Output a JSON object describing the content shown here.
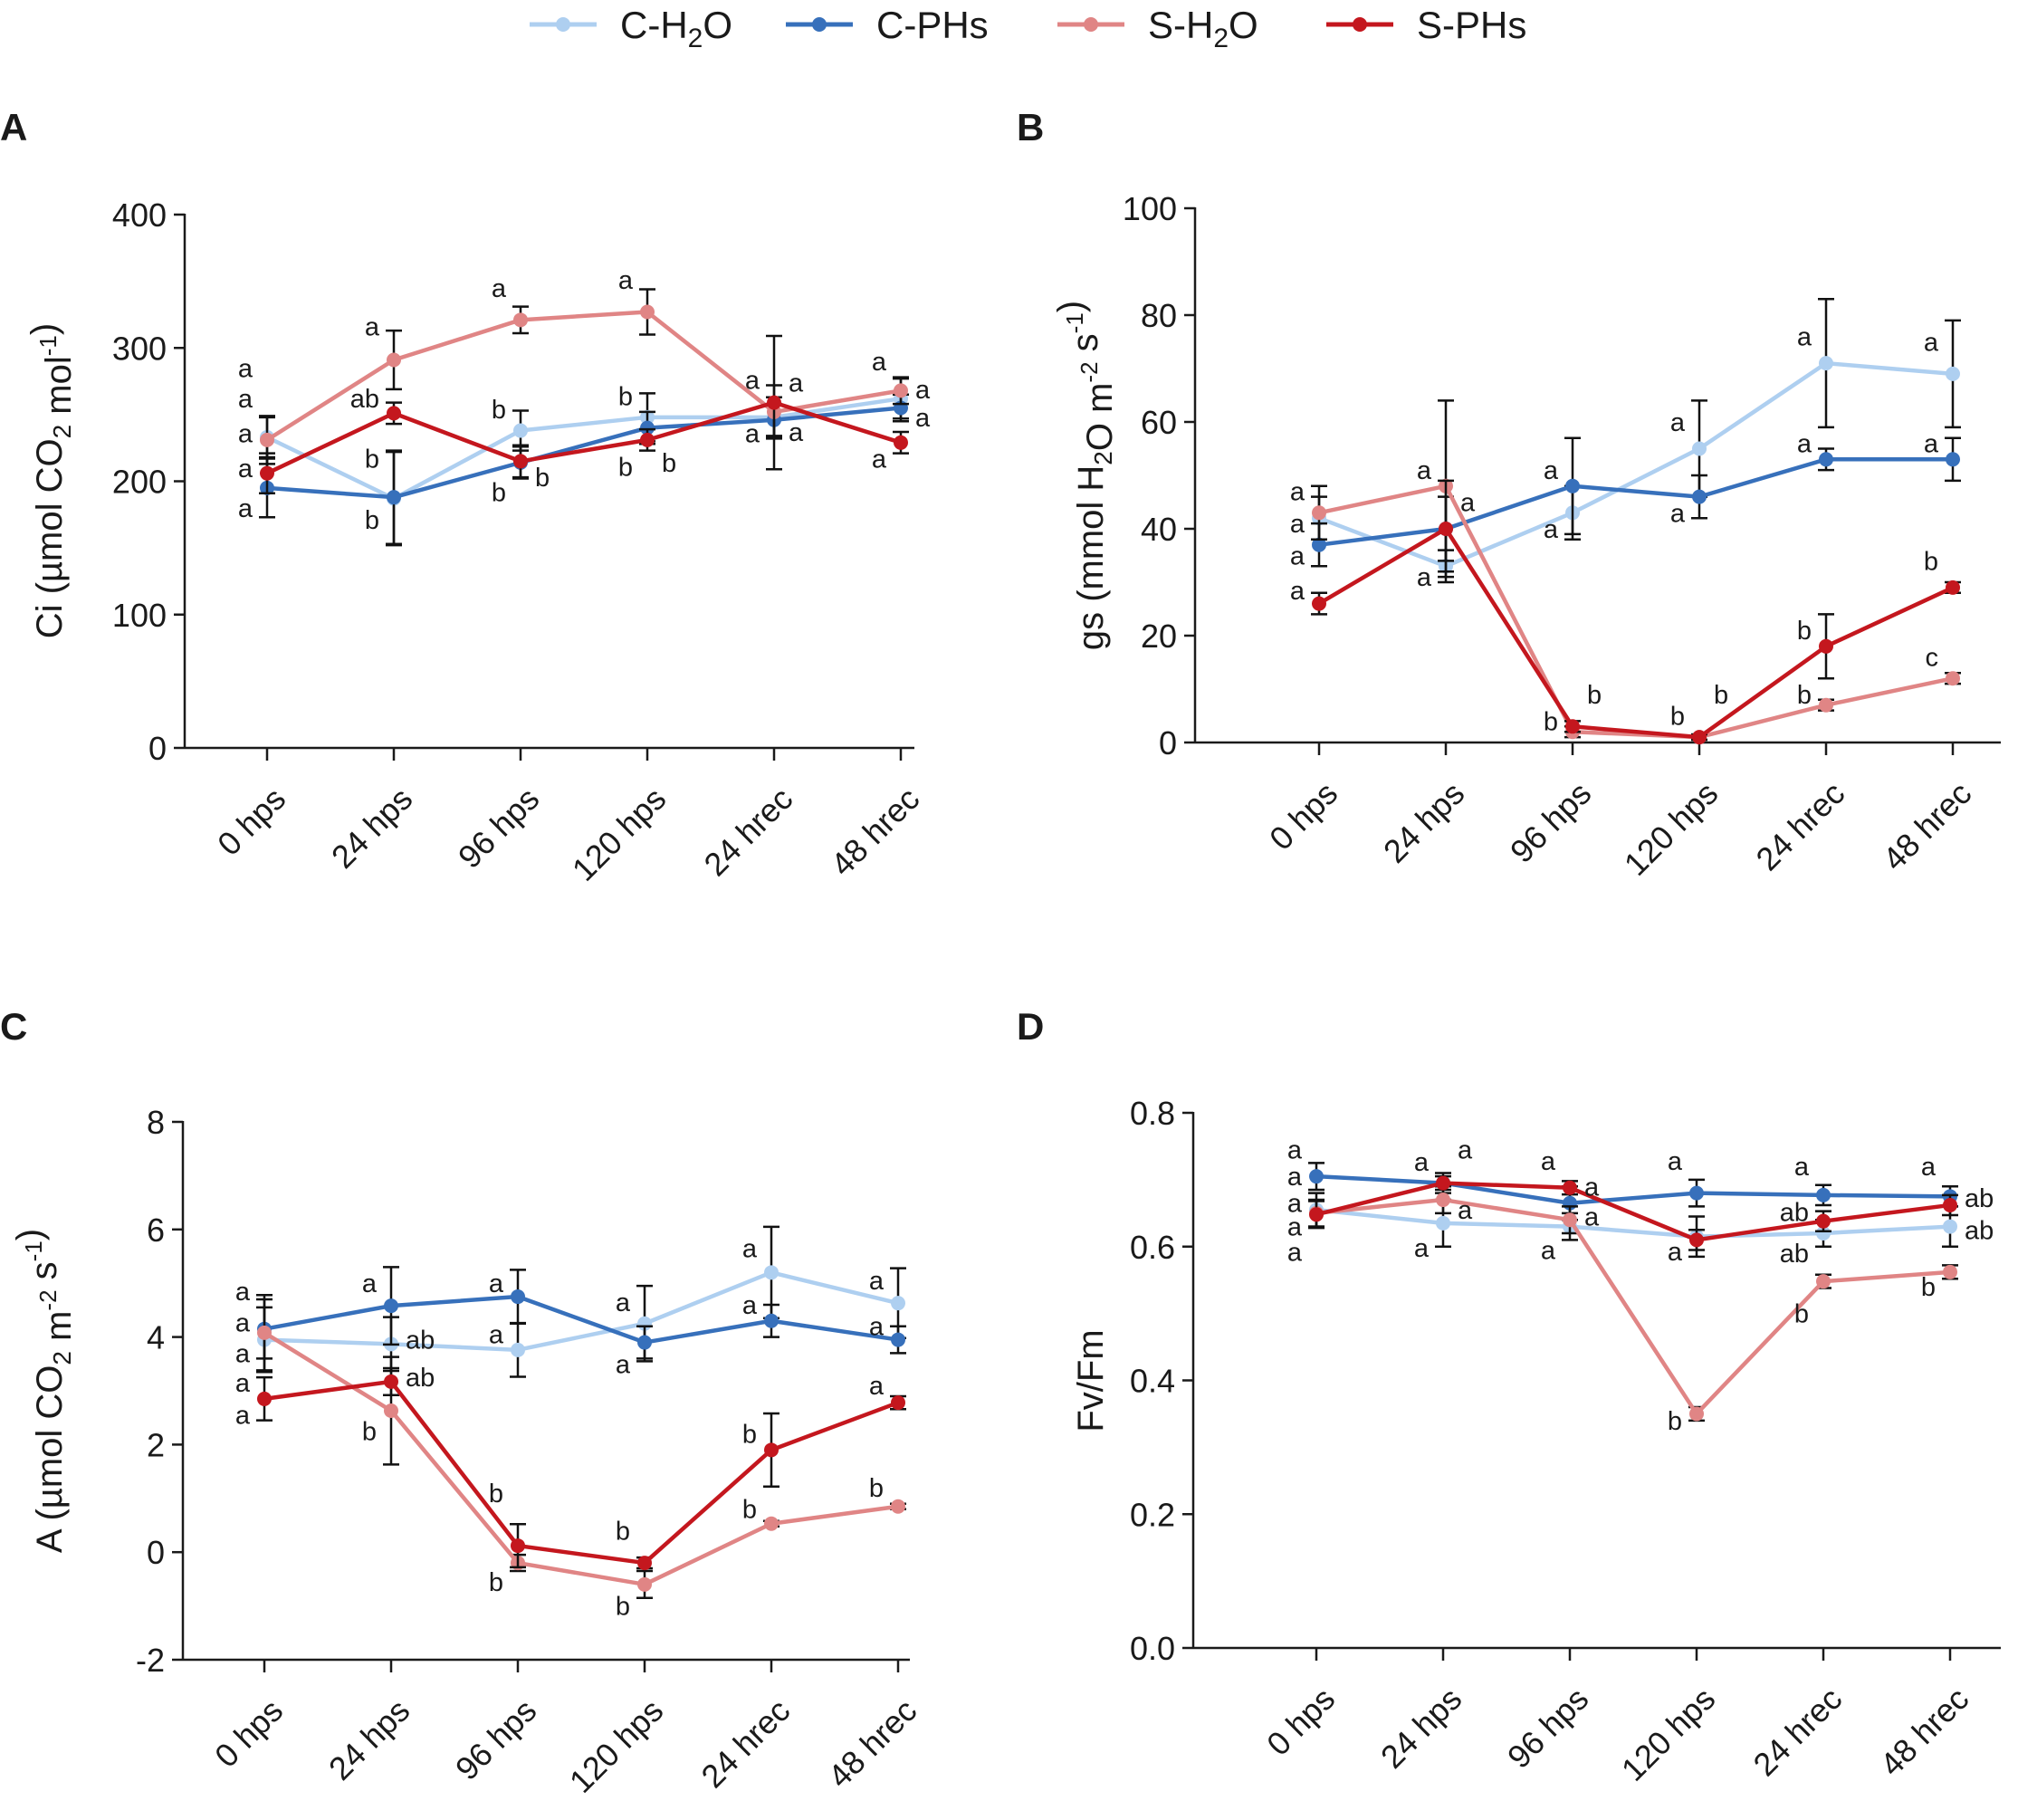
{
  "colors": {
    "C-H2O": "#aecff0",
    "C-PHs": "#3770bb",
    "S-H2O": "#e08585",
    "S-PHs": "#c4171e",
    "axis": "#1a1a1a"
  },
  "legend": [
    {
      "key": "C-H2O",
      "prefix": "C-H",
      "sub": "2",
      "suffix": "O"
    },
    {
      "key": "C-PHs",
      "prefix": "C-PHs",
      "sub": "",
      "suffix": ""
    },
    {
      "key": "S-H2O",
      "prefix": "S-H",
      "sub": "2",
      "suffix": "O"
    },
    {
      "key": "S-PHs",
      "prefix": "S-PHs",
      "sub": "",
      "suffix": ""
    }
  ],
  "chart_data": [
    {
      "id": "A",
      "panel_label": "A",
      "type": "line",
      "ylabel_parts": [
        {
          "t": "Ci (µmol CO"
        },
        {
          "t": "2",
          "sub": true
        },
        {
          "t": " mol"
        },
        {
          "t": "-1",
          "sup": true
        },
        {
          "t": ")"
        }
      ],
      "ylim": [
        0,
        400
      ],
      "yticks": [
        0,
        100,
        200,
        300,
        400
      ],
      "ytick_labels": [
        "0",
        "100",
        "200",
        "300",
        "400"
      ],
      "categories": [
        "0 hps",
        "24 hps",
        "96 hps",
        "120 hps",
        "24 hrec",
        "48 hrec"
      ],
      "series": [
        {
          "name": "C-H2O",
          "values": [
            233,
            187,
            238,
            248,
            248,
            262
          ],
          "err": [
            15,
            35,
            15,
            18,
            15,
            15
          ]
        },
        {
          "name": "C-PHs",
          "values": [
            195,
            188,
            214,
            240,
            246,
            255
          ],
          "err": [
            22,
            35,
            12,
            12,
            12,
            10
          ]
        },
        {
          "name": "S-H2O",
          "values": [
            231,
            291,
            321,
            327,
            252,
            268
          ],
          "err": [
            18,
            22,
            10,
            17,
            20,
            10
          ]
        },
        {
          "name": "S-PHs",
          "values": [
            206,
            251,
            215,
            231,
            259,
            229
          ],
          "err": [
            15,
            8,
            12,
            8,
            50,
            8
          ]
        }
      ],
      "letters": [
        {
          "col": 0,
          "text": "a",
          "v": 285,
          "side": "left"
        },
        {
          "col": 0,
          "text": "a",
          "v": 262,
          "side": "left"
        },
        {
          "col": 0,
          "text": "a",
          "v": 236,
          "side": "left"
        },
        {
          "col": 0,
          "text": "a",
          "v": 210,
          "side": "left"
        },
        {
          "col": 0,
          "text": "a",
          "v": 180,
          "side": "left"
        },
        {
          "col": 1,
          "text": "a",
          "v": 316,
          "side": "left"
        },
        {
          "col": 1,
          "text": "ab",
          "v": 262,
          "side": "left"
        },
        {
          "col": 1,
          "text": "b",
          "v": 217,
          "side": "left"
        },
        {
          "col": 1,
          "text": "b",
          "v": 171,
          "side": "left"
        },
        {
          "col": 2,
          "text": "a",
          "v": 345,
          "side": "left"
        },
        {
          "col": 2,
          "text": "b",
          "v": 254,
          "side": "left"
        },
        {
          "col": 2,
          "text": "b",
          "v": 192,
          "side": "left"
        },
        {
          "col": 2,
          "text": "b",
          "v": 203,
          "side": "right"
        },
        {
          "col": 3,
          "text": "a",
          "v": 351,
          "side": "left"
        },
        {
          "col": 3,
          "text": "b",
          "v": 264,
          "side": "left"
        },
        {
          "col": 3,
          "text": "b",
          "v": 211,
          "side": "left"
        },
        {
          "col": 3,
          "text": "b",
          "v": 214,
          "side": "right"
        },
        {
          "col": 4,
          "text": "a",
          "v": 276,
          "side": "left"
        },
        {
          "col": 4,
          "text": "a",
          "v": 274,
          "side": "right"
        },
        {
          "col": 4,
          "text": "a",
          "v": 236,
          "side": "left"
        },
        {
          "col": 4,
          "text": "a",
          "v": 237,
          "side": "right"
        },
        {
          "col": 5,
          "text": "a",
          "v": 290,
          "side": "left"
        },
        {
          "col": 5,
          "text": "a",
          "v": 269,
          "side": "right"
        },
        {
          "col": 5,
          "text": "a",
          "v": 248,
          "side": "right"
        },
        {
          "col": 5,
          "text": "a",
          "v": 217,
          "side": "left"
        }
      ]
    },
    {
      "id": "B",
      "panel_label": "B",
      "type": "line",
      "ylabel_parts": [
        {
          "t": "gs (mmol H"
        },
        {
          "t": "2",
          "sub": true
        },
        {
          "t": "O m"
        },
        {
          "t": "-2",
          "sup": true
        },
        {
          "t": " s"
        },
        {
          "t": "-1",
          "sup": true
        },
        {
          "t": ")"
        }
      ],
      "ylim": [
        0,
        100
      ],
      "yticks": [
        0,
        20,
        40,
        60,
        80,
        100
      ],
      "ytick_labels": [
        "0",
        "20",
        "40",
        "60",
        "80",
        "100"
      ],
      "categories": [
        "0 hps",
        "24 hps",
        "96 hps",
        "120 hps",
        "24 hrec",
        "48 hrec"
      ],
      "series": [
        {
          "name": "C-H2O",
          "values": [
            42,
            33,
            43,
            55,
            71,
            69
          ],
          "err": [
            4,
            3,
            5,
            9,
            12,
            10
          ]
        },
        {
          "name": "C-PHs",
          "values": [
            37,
            40,
            48,
            46,
            53,
            53
          ],
          "err": [
            4,
            6,
            9,
            4,
            2,
            4
          ]
        },
        {
          "name": "S-H2O",
          "values": [
            43,
            48,
            2,
            1,
            7,
            12
          ],
          "err": [
            5,
            16,
            1,
            0.5,
            1,
            1
          ]
        },
        {
          "name": "S-PHs",
          "values": [
            26,
            40,
            3,
            1,
            18,
            29
          ],
          "err": [
            2,
            9,
            1,
            0.5,
            6,
            1
          ]
        }
      ],
      "letters": [
        {
          "col": 0,
          "text": "a",
          "v": 47,
          "side": "left"
        },
        {
          "col": 0,
          "text": "a",
          "v": 41,
          "side": "left"
        },
        {
          "col": 0,
          "text": "a",
          "v": 35,
          "side": "left"
        },
        {
          "col": 0,
          "text": "a",
          "v": 28.5,
          "side": "left"
        },
        {
          "col": 1,
          "text": "a",
          "v": 51,
          "side": "left"
        },
        {
          "col": 1,
          "text": "a",
          "v": 45,
          "side": "right"
        },
        {
          "col": 1,
          "text": "a",
          "v": 31,
          "side": "left"
        },
        {
          "col": 2,
          "text": "a",
          "v": 51,
          "side": "left"
        },
        {
          "col": 2,
          "text": "a",
          "v": 40,
          "side": "left"
        },
        {
          "col": 2,
          "text": "b",
          "v": 9,
          "side": "right"
        },
        {
          "col": 2,
          "text": "b",
          "v": 4,
          "side": "left"
        },
        {
          "col": 3,
          "text": "a",
          "v": 60,
          "side": "left"
        },
        {
          "col": 3,
          "text": "a",
          "v": 43,
          "side": "left"
        },
        {
          "col": 3,
          "text": "b",
          "v": 9,
          "side": "right"
        },
        {
          "col": 3,
          "text": "b",
          "v": 5,
          "side": "left"
        },
        {
          "col": 4,
          "text": "a",
          "v": 76,
          "side": "left"
        },
        {
          "col": 4,
          "text": "a",
          "v": 56,
          "side": "left"
        },
        {
          "col": 4,
          "text": "b",
          "v": 21,
          "side": "left"
        },
        {
          "col": 4,
          "text": "b",
          "v": 9,
          "side": "left"
        },
        {
          "col": 5,
          "text": "a",
          "v": 75,
          "side": "left"
        },
        {
          "col": 5,
          "text": "a",
          "v": 56,
          "side": "left"
        },
        {
          "col": 5,
          "text": "b",
          "v": 34,
          "side": "left"
        },
        {
          "col": 5,
          "text": "c",
          "v": 16,
          "side": "left"
        }
      ]
    },
    {
      "id": "C",
      "panel_label": "C",
      "type": "line",
      "ylabel_parts": [
        {
          "t": "A (µmol CO"
        },
        {
          "t": "2",
          "sub": true
        },
        {
          "t": " m"
        },
        {
          "t": "-2",
          "sup": true
        },
        {
          "t": " s"
        },
        {
          "t": "-1",
          "sup": true
        },
        {
          "t": ")"
        }
      ],
      "ylim": [
        -2,
        8
      ],
      "yticks": [
        -2,
        0,
        2,
        4,
        6,
        8
      ],
      "ytick_labels": [
        "-2",
        "0",
        "2",
        "4",
        "6",
        "8"
      ],
      "categories": [
        "0 hps",
        "24 hps",
        "96 hps",
        "120 hps",
        "24 hrec",
        "48 hrec"
      ],
      "series": [
        {
          "name": "C-H2O",
          "values": [
            3.95,
            3.87,
            3.76,
            4.25,
            5.2,
            4.63
          ],
          "err": [
            0.6,
            0.5,
            0.5,
            0.7,
            0.85,
            0.65
          ]
        },
        {
          "name": "C-PHs",
          "values": [
            4.15,
            4.58,
            4.75,
            3.9,
            4.3,
            3.95
          ],
          "err": [
            0.55,
            0.72,
            0.5,
            0.3,
            0.3,
            0.25
          ]
        },
        {
          "name": "S-H2O",
          "values": [
            4.08,
            2.63,
            -0.2,
            -0.6,
            0.53,
            0.85
          ],
          "err": [
            0.7,
            1.0,
            0.15,
            0.25,
            0.05,
            0.05
          ]
        },
        {
          "name": "S-PHs",
          "values": [
            2.85,
            3.17,
            0.12,
            -0.2,
            1.9,
            2.78
          ],
          "err": [
            0.4,
            0.25,
            0.4,
            0.1,
            0.68,
            0.12
          ]
        }
      ],
      "letters": [
        {
          "col": 0,
          "text": "a",
          "v": 4.85,
          "side": "left"
        },
        {
          "col": 0,
          "text": "a",
          "v": 4.27,
          "side": "left"
        },
        {
          "col": 0,
          "text": "a",
          "v": 3.7,
          "side": "left"
        },
        {
          "col": 0,
          "text": "a",
          "v": 3.15,
          "side": "left"
        },
        {
          "col": 0,
          "text": "a",
          "v": 2.55,
          "side": "left"
        },
        {
          "col": 1,
          "text": "a",
          "v": 5.0,
          "side": "left"
        },
        {
          "col": 1,
          "text": "ab",
          "v": 3.95,
          "side": "right"
        },
        {
          "col": 1,
          "text": "ab",
          "v": 3.25,
          "side": "right"
        },
        {
          "col": 1,
          "text": "b",
          "v": 2.25,
          "side": "left"
        },
        {
          "col": 2,
          "text": "a",
          "v": 5.0,
          "side": "left"
        },
        {
          "col": 2,
          "text": "a",
          "v": 4.05,
          "side": "left"
        },
        {
          "col": 2,
          "text": "b",
          "v": 1.1,
          "side": "left"
        },
        {
          "col": 2,
          "text": "b",
          "v": -0.55,
          "side": "left"
        },
        {
          "col": 3,
          "text": "a",
          "v": 4.65,
          "side": "left"
        },
        {
          "col": 3,
          "text": "a",
          "v": 3.5,
          "side": "left"
        },
        {
          "col": 3,
          "text": "b",
          "v": 0.4,
          "side": "left"
        },
        {
          "col": 3,
          "text": "b",
          "v": -1.0,
          "side": "left"
        },
        {
          "col": 4,
          "text": "a",
          "v": 5.65,
          "side": "left"
        },
        {
          "col": 4,
          "text": "a",
          "v": 4.6,
          "side": "left"
        },
        {
          "col": 4,
          "text": "b",
          "v": 2.2,
          "side": "left"
        },
        {
          "col": 4,
          "text": "b",
          "v": 0.8,
          "side": "left"
        },
        {
          "col": 5,
          "text": "a",
          "v": 5.05,
          "side": "left"
        },
        {
          "col": 5,
          "text": "a",
          "v": 4.2,
          "side": "left"
        },
        {
          "col": 5,
          "text": "a",
          "v": 3.1,
          "side": "left"
        },
        {
          "col": 5,
          "text": "b",
          "v": 1.2,
          "side": "left"
        }
      ]
    },
    {
      "id": "D",
      "panel_label": "D",
      "type": "line",
      "ylabel_parts": [
        {
          "t": "Fv/Fm"
        }
      ],
      "ylim": [
        0.0,
        0.8
      ],
      "yticks": [
        0.0,
        0.2,
        0.4,
        0.6,
        0.8
      ],
      "ytick_labels": [
        "0.0",
        "0.2",
        "0.4",
        "0.6",
        "0.8"
      ],
      "categories": [
        "0 hps",
        "24 hps",
        "96 hps",
        "120 hps",
        "24 hrec",
        "48 hrec"
      ],
      "series": [
        {
          "name": "C-H2O",
          "values": [
            0.655,
            0.635,
            0.63,
            0.615,
            0.62,
            0.63
          ],
          "err": [
            0.025,
            0.035,
            0.02,
            0.03,
            0.02,
            0.03
          ]
        },
        {
          "name": "C-PHs",
          "values": [
            0.705,
            0.695,
            0.665,
            0.68,
            0.677,
            0.675
          ],
          "err": [
            0.02,
            0.015,
            0.025,
            0.02,
            0.015,
            0.015
          ]
        },
        {
          "name": "S-H2O",
          "values": [
            0.65,
            0.67,
            0.64,
            0.35,
            0.548,
            0.562
          ],
          "err": [
            0.02,
            0.02,
            0.02,
            0.01,
            0.01,
            0.01
          ]
        },
        {
          "name": "S-PHs",
          "values": [
            0.648,
            0.695,
            0.688,
            0.61,
            0.638,
            0.662
          ],
          "err": [
            0.02,
            0.01,
            0.01,
            0.015,
            0.015,
            0.015
          ]
        }
      ],
      "letters": [
        {
          "col": 0,
          "text": "a",
          "v": 0.745,
          "side": "left"
        },
        {
          "col": 0,
          "text": "a",
          "v": 0.705,
          "side": "left"
        },
        {
          "col": 0,
          "text": "a",
          "v": 0.665,
          "side": "left"
        },
        {
          "col": 0,
          "text": "a",
          "v": 0.63,
          "side": "left"
        },
        {
          "col": 0,
          "text": "a",
          "v": 0.592,
          "side": "left"
        },
        {
          "col": 1,
          "text": "a",
          "v": 0.727,
          "side": "left"
        },
        {
          "col": 1,
          "text": "a",
          "v": 0.745,
          "side": "right"
        },
        {
          "col": 1,
          "text": "a",
          "v": 0.655,
          "side": "right"
        },
        {
          "col": 1,
          "text": "a",
          "v": 0.598,
          "side": "left"
        },
        {
          "col": 2,
          "text": "a",
          "v": 0.728,
          "side": "left"
        },
        {
          "col": 2,
          "text": "a",
          "v": 0.69,
          "side": "right"
        },
        {
          "col": 2,
          "text": "a",
          "v": 0.645,
          "side": "right"
        },
        {
          "col": 2,
          "text": "a",
          "v": 0.595,
          "side": "left"
        },
        {
          "col": 3,
          "text": "a",
          "v": 0.728,
          "side": "left"
        },
        {
          "col": 3,
          "text": "a",
          "v": 0.593,
          "side": "left"
        },
        {
          "col": 3,
          "text": "b",
          "v": 0.34,
          "side": "left"
        },
        {
          "col": 4,
          "text": "a",
          "v": 0.72,
          "side": "left"
        },
        {
          "col": 4,
          "text": "ab",
          "v": 0.652,
          "side": "left"
        },
        {
          "col": 4,
          "text": "ab",
          "v": 0.59,
          "side": "left"
        },
        {
          "col": 4,
          "text": "b",
          "v": 0.5,
          "side": "left"
        },
        {
          "col": 5,
          "text": "a",
          "v": 0.72,
          "side": "left"
        },
        {
          "col": 5,
          "text": "ab",
          "v": 0.673,
          "side": "right"
        },
        {
          "col": 5,
          "text": "ab",
          "v": 0.625,
          "side": "right"
        },
        {
          "col": 5,
          "text": "b",
          "v": 0.54,
          "side": "left"
        }
      ]
    }
  ]
}
